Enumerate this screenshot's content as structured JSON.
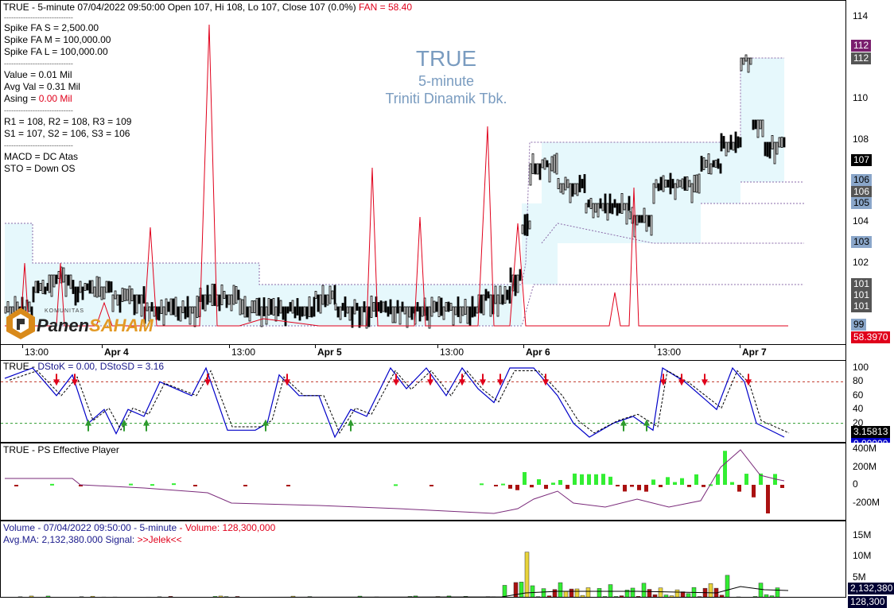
{
  "header": {
    "symbol": "TRUE",
    "info": "TRUE - 5-minute 07/04/2022 09:50:00 Open 107, Hi 108, Lo 107, Close 107 (0.0%)",
    "fan_label": "FAN = 58.40"
  },
  "stats": {
    "sep": "-----------------------------",
    "spike_s": "Spike FA S =  2,500.00",
    "spike_m": "Spike FA M =  100,000.00",
    "spike_l": "Spike FA L =  100,000.00",
    "value": "Value = 0.01 Mil",
    "avg_val": "Avg Val = 0.31 Mil",
    "asing_label": "Asing = ",
    "asing_value": "0.00 Mil",
    "resist": "R1 = 108, R2 = 108, R3 = 109",
    "support": "S1 = 107, S2 = 106, S3 = 106",
    "macd": "MACD =  DC Atas",
    "sto": "STO  =  Down OS"
  },
  "watermark": {
    "ticker": "TRUE",
    "interval": "5-minute",
    "company": "Triniti Dinamik Tbk.",
    "logo_small": "KOMUNITAS",
    "logo_a": "Panen",
    "logo_b": "SAHAM"
  },
  "price_axis": {
    "ticks": [
      "114",
      "112",
      "110",
      "108",
      "106",
      "104",
      "102",
      "100"
    ],
    "tick_values": [
      114,
      112,
      110,
      108,
      106,
      104,
      102,
      100
    ],
    "markers": [
      {
        "text": "112",
        "value": 112.55,
        "bg": "#7a1f6e",
        "fg": "#ffffff"
      },
      {
        "text": "112",
        "value": 111.95,
        "bg": "#555555",
        "fg": "#ffffff"
      },
      {
        "text": "107",
        "value": 107,
        "bg": "#000000",
        "fg": "#ffffff"
      },
      {
        "text": "106",
        "value": 106,
        "bg": "#8aa6c9",
        "fg": "#000000"
      },
      {
        "text": "106",
        "value": 105.45,
        "bg": "#555555",
        "fg": "#ffffff"
      },
      {
        "text": "105",
        "value": 104.9,
        "bg": "#8aa6c9",
        "fg": "#000000"
      },
      {
        "text": "103",
        "value": 103,
        "bg": "#8aa6c9",
        "fg": "#000000"
      },
      {
        "text": "101",
        "value": 100.95,
        "bg": "#555555",
        "fg": "#ffffff"
      },
      {
        "text": "101",
        "value": 100.4,
        "bg": "#555555",
        "fg": "#ffffff"
      },
      {
        "text": "101",
        "value": 99.85,
        "bg": "#555555",
        "fg": "#ffffff"
      },
      {
        "text": "99",
        "value": 98.95,
        "bg": "#8aa6c9",
        "fg": "#000000"
      },
      {
        "text": "58.3970",
        "value": 98.35,
        "bg": "#e0001b",
        "fg": "#ffffff"
      }
    ]
  },
  "time_axis": [
    "13:00",
    "Apr 4",
    "13:00",
    "Apr 5",
    "13:00",
    "Apr 6",
    "13:00",
    "Apr 7"
  ],
  "stoch": {
    "title_a": "TRUE - ",
    "title_b": "DStoK = 0.00, DStoSD = 3.16",
    "ticks": [
      "100",
      "80",
      "60",
      "40",
      "20"
    ],
    "tick_values": [
      100,
      80,
      60,
      40,
      20
    ],
    "marker_a": "3.15813",
    "marker_b": "0.00000"
  },
  "ps": {
    "title": "TRUE - PS Effective Player",
    "ticks": [
      "400M",
      "200M",
      "0",
      "-200M"
    ],
    "tick_values": [
      400,
      200,
      0,
      -200
    ]
  },
  "volume": {
    "title_a": "Volume - 07/04/2022 09:50:00 - 5-minute",
    "title_b": "- Volume: 128,300,000",
    "avg_a": "Avg.MA: 2,132,380.000",
    "avg_b": "Signal: ",
    "signal": ">>Jelek<<",
    "ticks": [
      "15M",
      "10M",
      "5M"
    ],
    "tick_values": [
      15,
      10,
      5
    ],
    "marker_a": "2,132,380",
    "marker_b": "128,300"
  },
  "colors": {
    "fan_red": "#e0001b",
    "band_fill": "#e6f8fc",
    "stoch_k": "#0000c8",
    "ps_line": "#7a2a7a",
    "vol_up": "#33ee33",
    "vol_down": "#aa1111",
    "watermark": "#7a9cc0"
  }
}
